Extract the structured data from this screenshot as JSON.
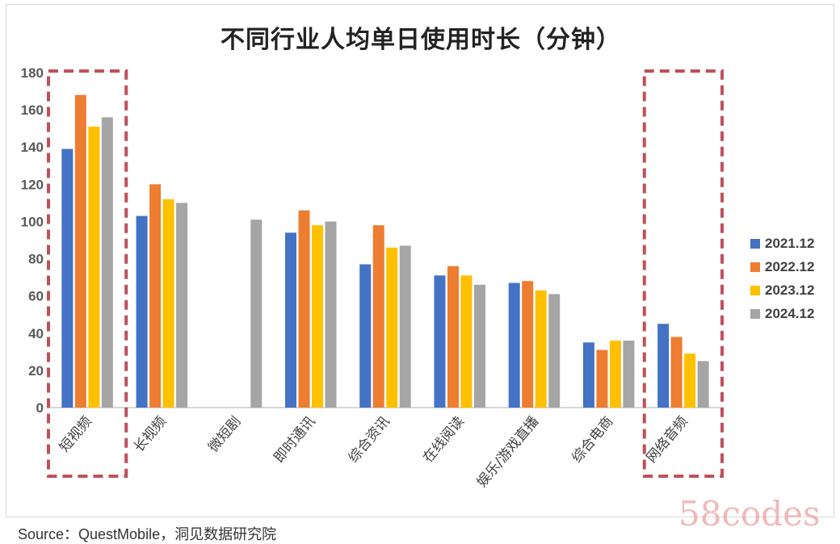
{
  "chart_data": {
    "type": "bar",
    "title": "不同行业人均单日使用时长（分钟）",
    "categories": [
      "短视频",
      "长视频",
      "微短剧",
      "即时通讯",
      "综合资讯",
      "在线阅读",
      "娱乐/游戏直播",
      "综合电商",
      "网络音频"
    ],
    "series": [
      {
        "name": "2021.12",
        "color": "#4472c4",
        "values": [
          139,
          103,
          null,
          94,
          77,
          71,
          67,
          35,
          45
        ]
      },
      {
        "name": "2022.12",
        "color": "#ed7d31",
        "values": [
          168,
          120,
          null,
          106,
          98,
          76,
          68,
          31,
          38
        ]
      },
      {
        "name": "2023.12",
        "color": "#ffc000",
        "values": [
          151,
          112,
          null,
          98,
          86,
          71,
          63,
          36,
          29
        ]
      },
      {
        "name": "2024.12",
        "color": "#a5a5a5",
        "values": [
          156,
          110,
          101,
          100,
          87,
          66,
          61,
          36,
          25
        ]
      }
    ],
    "yticks": [
      0,
      20,
      40,
      60,
      80,
      100,
      120,
      140,
      160,
      180
    ],
    "ylim": [
      0,
      180
    ],
    "legend_position": "right",
    "grid": false,
    "highlight_color": "#c0505a",
    "highlighted_categories": [
      "短视频",
      "网络音频"
    ]
  },
  "footer": {
    "source": "Source：QuestMobile，洞见数据研究院",
    "watermark": "58codes"
  }
}
